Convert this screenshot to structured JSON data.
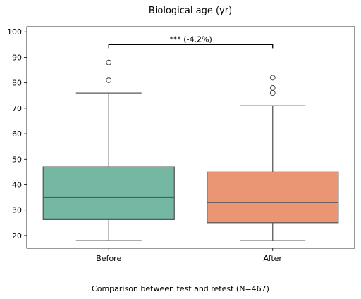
{
  "chart_data": {
    "type": "box",
    "title": "Biological age (yr)",
    "caption": "Comparison between test and retest (N=467)",
    "ylim": [
      15,
      102
    ],
    "yticks": [
      20,
      30,
      40,
      50,
      60,
      70,
      80,
      90,
      100
    ],
    "grid": false,
    "boxes": [
      {
        "category": "Before",
        "color": "#74b8a3",
        "whisker_low": 18,
        "q1": 26.5,
        "median": 35,
        "q3": 47,
        "whisker_high": 76,
        "outliers": [
          81,
          88
        ]
      },
      {
        "category": "After",
        "color": "#eb9673",
        "whisker_low": 18,
        "q1": 25,
        "median": 33,
        "q3": 45,
        "whisker_high": 71,
        "outliers": [
          76,
          78,
          82
        ]
      }
    ],
    "annotation": {
      "text": "*** (-4.2%)",
      "y": 95
    }
  }
}
